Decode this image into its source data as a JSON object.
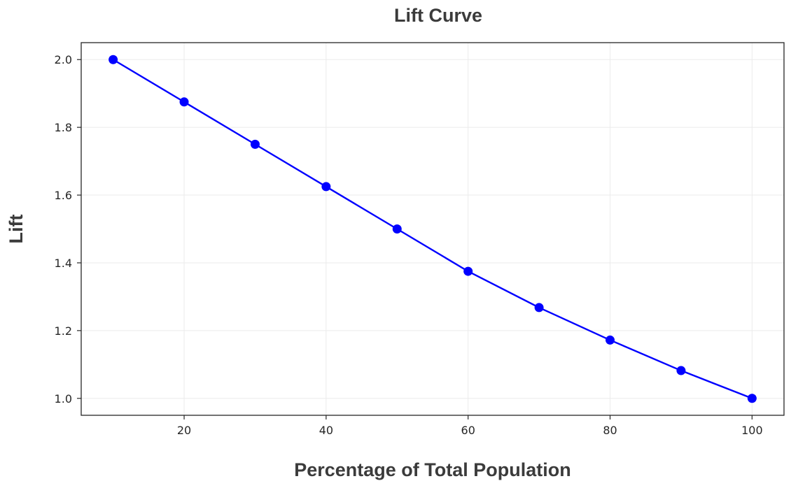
{
  "chart_data": {
    "type": "line",
    "title": "Lift Curve",
    "xlabel": "Percentage of Total Population",
    "ylabel": "Lift",
    "xlim": [
      5.5,
      104.5
    ],
    "ylim": [
      0.95,
      2.05
    ],
    "x_ticks": [
      20,
      40,
      60,
      80,
      100
    ],
    "y_ticks": [
      1.0,
      1.2,
      1.4,
      1.6,
      1.8,
      2.0
    ],
    "x_tick_labels": [
      "20",
      "40",
      "60",
      "80",
      "100"
    ],
    "y_tick_labels": [
      "1.0",
      "1.2",
      "1.4",
      "1.6",
      "1.8",
      "2.0"
    ],
    "grid": true,
    "legend": false,
    "series": [
      {
        "x": [
          10,
          20,
          30,
          40,
          50,
          60,
          70,
          80,
          90,
          100
        ],
        "y": [
          2.0,
          1.875,
          1.75,
          1.625,
          1.5,
          1.375,
          1.268,
          1.172,
          1.082,
          1.0
        ],
        "color": "#0000ff",
        "marker": "circle"
      }
    ]
  }
}
